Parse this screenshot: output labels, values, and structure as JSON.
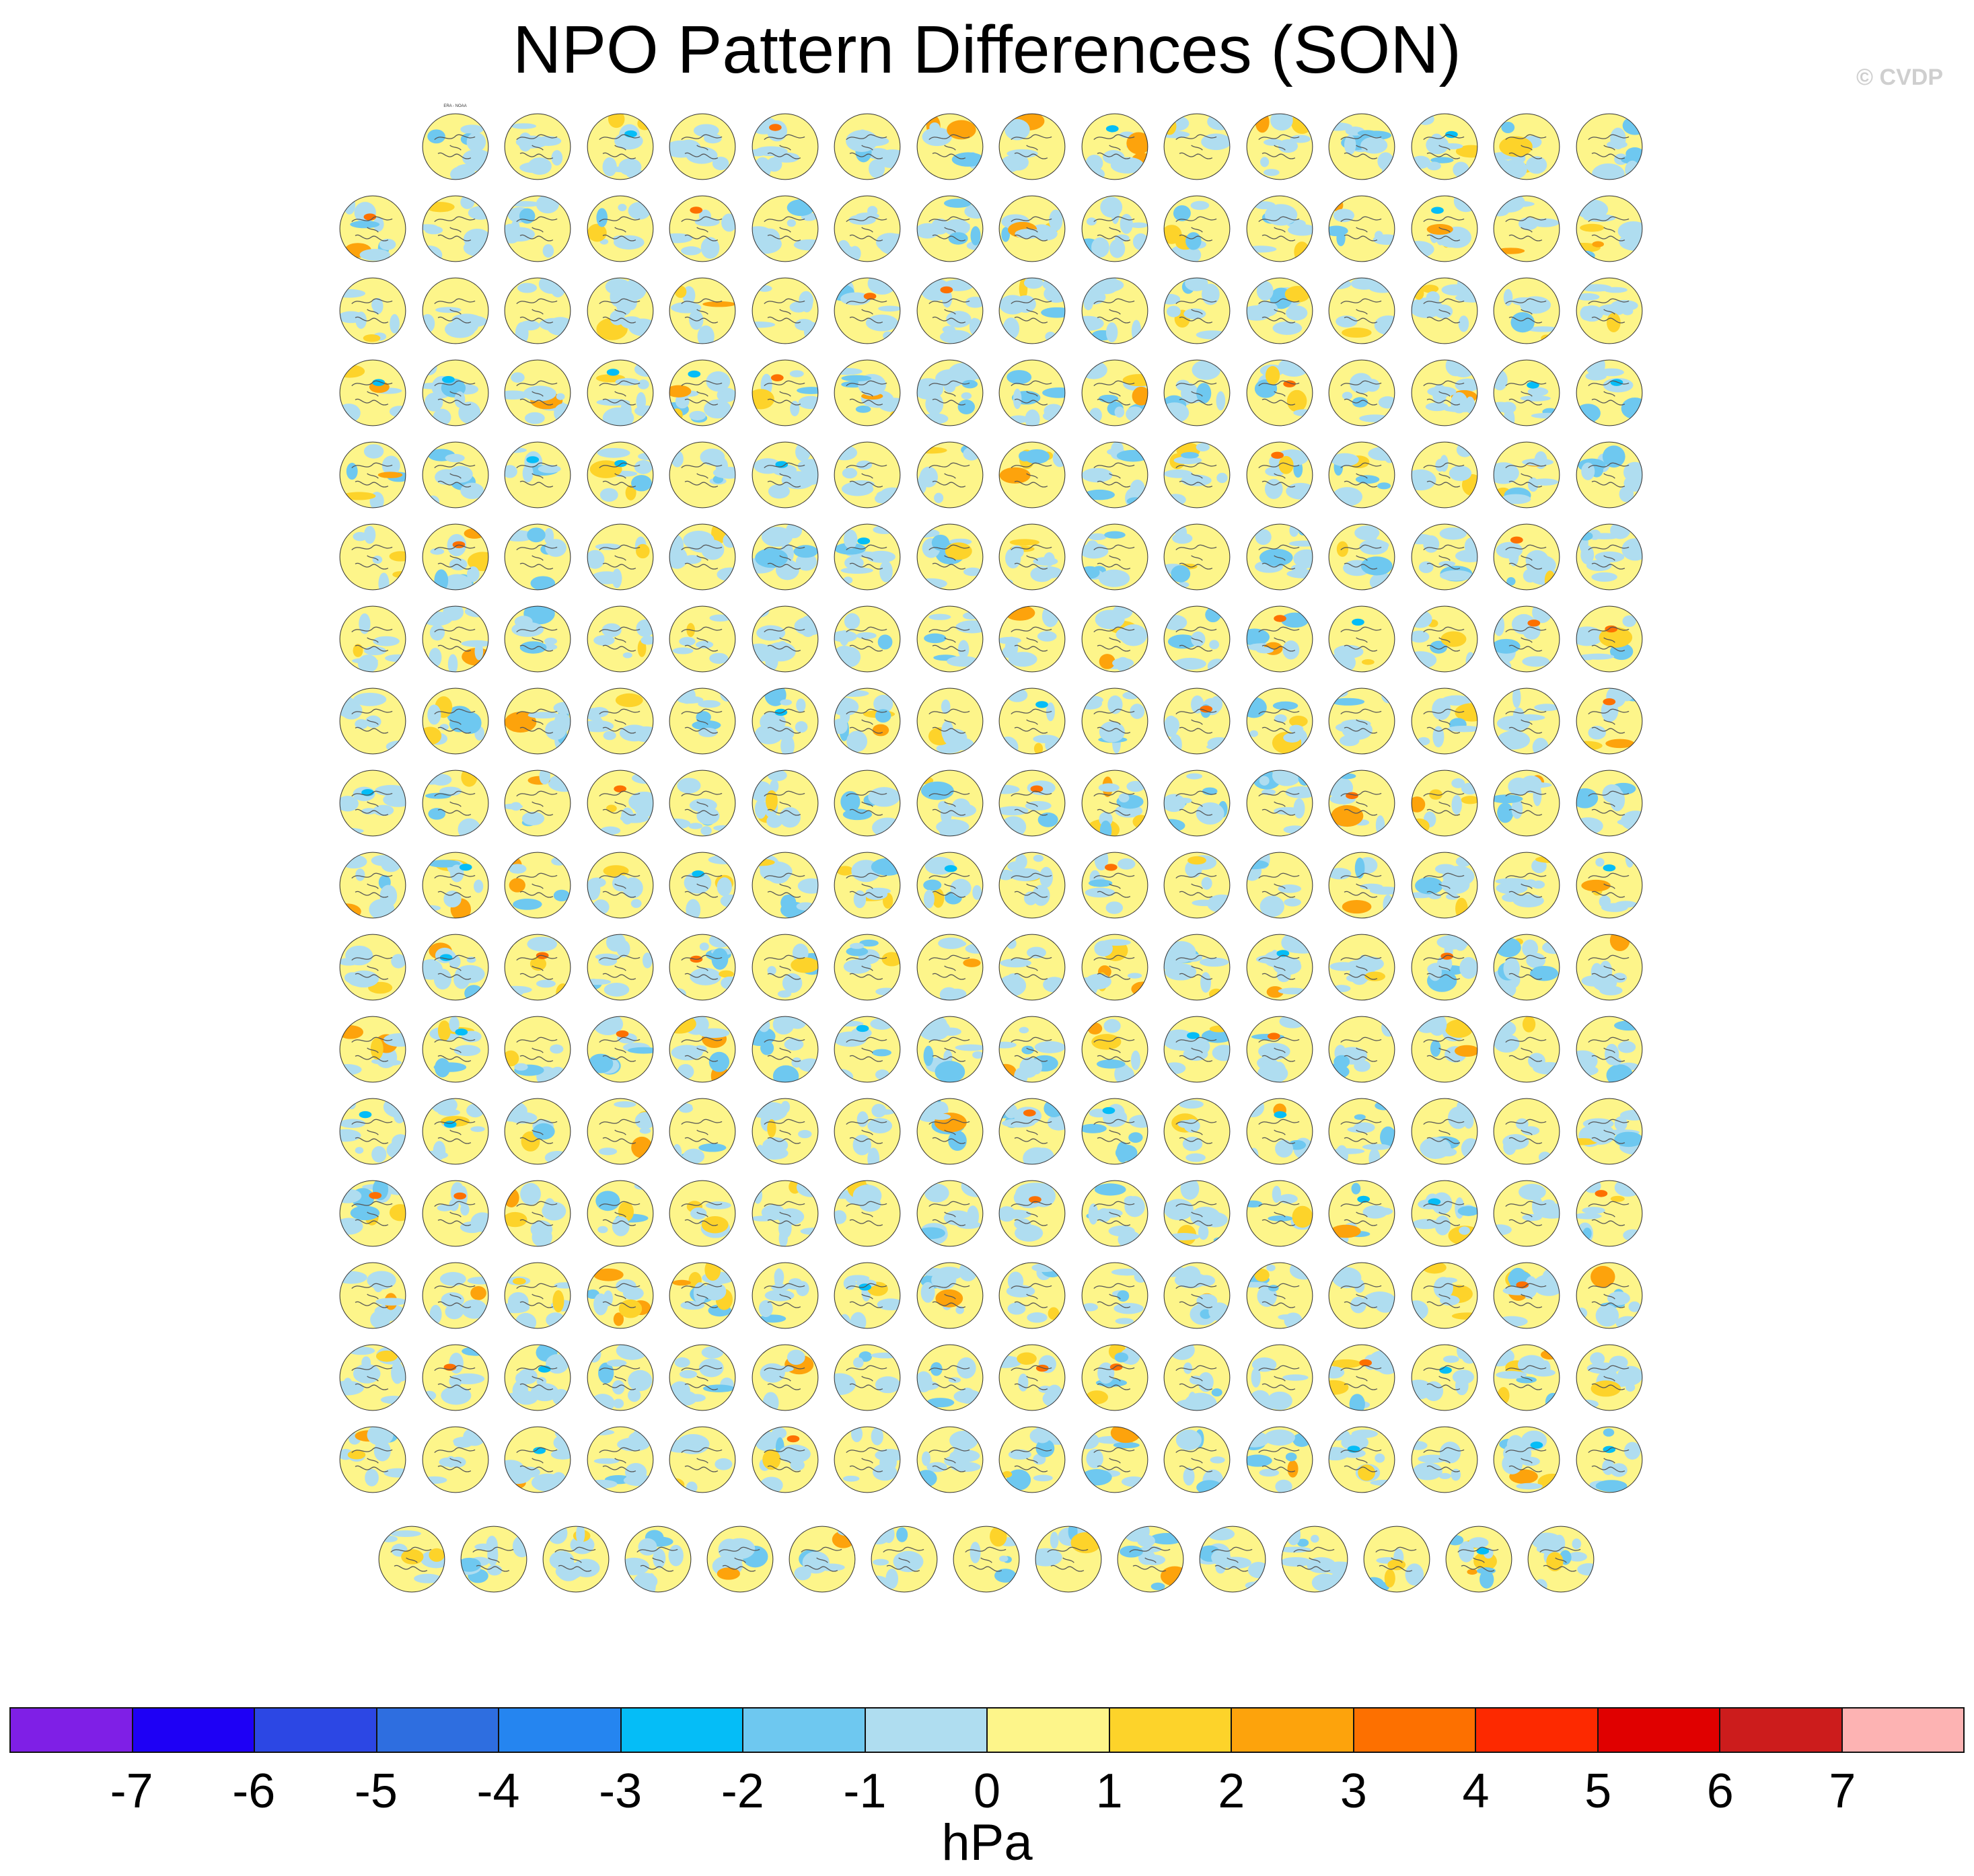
{
  "title": "NPO Pattern Differences (SON)",
  "watermark": "© CVDP",
  "chart_data": {
    "type": "heatmap",
    "description_of_layout": "grid of polar-stereographic difference maps (panel = model simulation minus observations)",
    "title": "NPO Pattern Differences (SON)",
    "rows": [
      {
        "count": 15,
        "first_label": "ERA - NOAA"
      },
      {
        "count": 16
      },
      {
        "count": 16
      },
      {
        "count": 16
      },
      {
        "count": 16
      },
      {
        "count": 16
      },
      {
        "count": 16
      },
      {
        "count": 16
      },
      {
        "count": 16
      },
      {
        "count": 16
      },
      {
        "count": 16
      },
      {
        "count": 16
      },
      {
        "count": 16
      },
      {
        "count": 16
      },
      {
        "count": 16
      },
      {
        "count": 16
      },
      {
        "count": 16
      },
      {
        "count": 15
      }
    ],
    "colorbar": {
      "units": "hPa",
      "levels": [
        -7,
        -6,
        -5,
        -4,
        -3,
        -2,
        -1,
        0,
        1,
        2,
        3,
        4,
        5,
        6,
        7
      ],
      "tick_labels": [
        "-7",
        "-6",
        "-5",
        "-4",
        "-3",
        "-2",
        "-1",
        "0",
        "1",
        "2",
        "3",
        "4",
        "5",
        "6",
        "7"
      ],
      "colors": [
        "#7f1fe6",
        "#1e00f5",
        "#2c47e4",
        "#2e6ee0",
        "#2585f0",
        "#05bdf7",
        "#6ec8f0",
        "#afddf0",
        "#fdf58a",
        "#fdd32a",
        "#fda30c",
        "#fd7000",
        "#fd2900",
        "#e00000",
        "#cc1c1c",
        "#fdb3b3"
      ]
    }
  }
}
